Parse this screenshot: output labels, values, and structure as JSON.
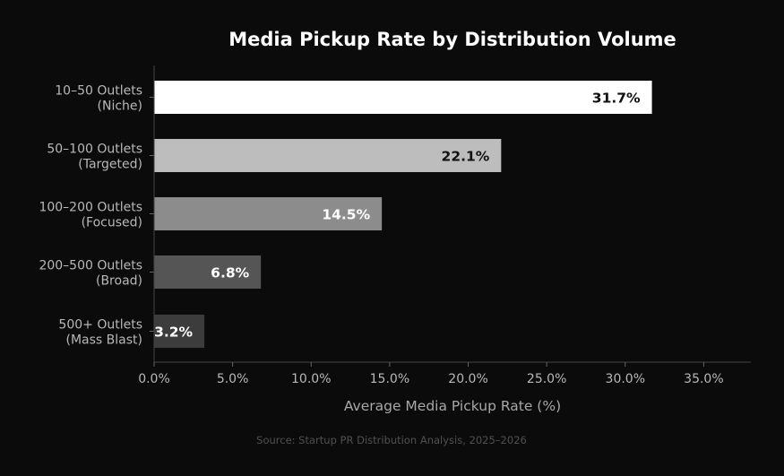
{
  "chart_data": {
    "type": "bar",
    "orientation": "horizontal",
    "title": "Media Pickup Rate by Distribution Volume",
    "categories": [
      [
        "10–50 Outlets",
        "(Niche)"
      ],
      [
        "50–100 Outlets",
        "(Targeted)"
      ],
      [
        "100–200 Outlets",
        "(Focused)"
      ],
      [
        "200–500 Outlets",
        "(Broad)"
      ],
      [
        "500+ Outlets",
        "(Mass Blast)"
      ]
    ],
    "values": [
      31.7,
      22.1,
      14.5,
      6.8,
      3.2
    ],
    "data_labels": [
      "31.7%",
      "22.1%",
      "14.5%",
      "6.8%",
      "3.2%"
    ],
    "bar_colors": [
      "#ffffff",
      "#bdbdbd",
      "#8c8c8c",
      "#555555",
      "#3c3c3c"
    ],
    "label_colors": [
      "#111111",
      "#111111",
      "#ffffff",
      "#ffffff",
      "#ffffff"
    ],
    "xlabel": "Average Media Pickup Rate (%)",
    "xlim": [
      0,
      38
    ],
    "xticks": [
      0,
      5,
      10,
      15,
      20,
      25,
      30,
      35
    ],
    "xtick_labels": [
      "0.0%",
      "5.0%",
      "10.0%",
      "15.0%",
      "20.0%",
      "25.0%",
      "30.0%",
      "35.0%"
    ],
    "grid": false,
    "background": "#0b0b0c",
    "source": "Source: Startup PR Distribution Analysis, 2025–2026"
  }
}
